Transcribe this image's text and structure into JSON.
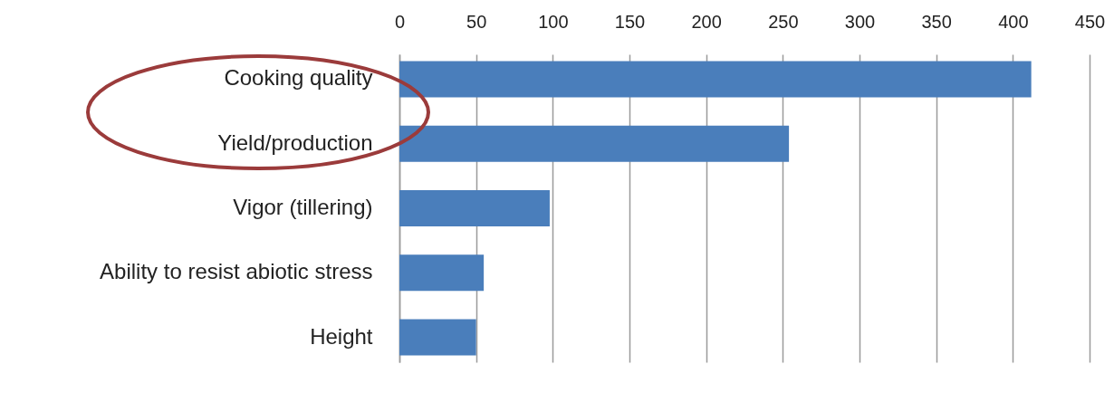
{
  "chart_data": {
    "type": "bar",
    "orientation": "horizontal",
    "categories": [
      "Cooking quality",
      "Yield/production",
      "Vigor (tillering)",
      "Ability to resist abiotic stress",
      "Height"
    ],
    "values": [
      412,
      254,
      98,
      55,
      50
    ],
    "color": "#4a7ebb",
    "xlim": [
      0,
      450
    ],
    "xticks": [
      0,
      50,
      100,
      150,
      200,
      250,
      300,
      350,
      400,
      450
    ],
    "grid": "x"
  }
}
